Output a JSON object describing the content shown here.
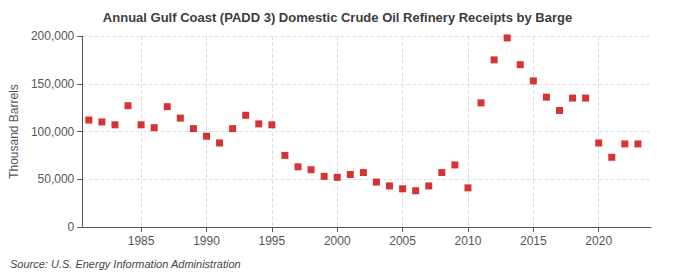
{
  "chart_data": {
    "type": "scatter",
    "title": "Annual Gulf Coast (PADD 3) Domestic Crude Oil Refinery Receipts by Barge",
    "ylabel": "Thousand Barrels",
    "annotation": "Source: U.S. Energy Information Administration",
    "x": [
      1981,
      1982,
      1983,
      1984,
      1985,
      1986,
      1987,
      1988,
      1989,
      1990,
      1991,
      1992,
      1993,
      1994,
      1995,
      1996,
      1997,
      1998,
      1999,
      2000,
      2001,
      2002,
      2003,
      2004,
      2005,
      2006,
      2007,
      2008,
      2009,
      2010,
      2011,
      2012,
      2013,
      2014,
      2015,
      2016,
      2017,
      2018,
      2019,
      2020,
      2021,
      2022,
      2023
    ],
    "values": [
      112000,
      110000,
      107000,
      127000,
      107000,
      104000,
      126000,
      114000,
      103000,
      95000,
      88000,
      103000,
      117000,
      108000,
      107000,
      75000,
      63000,
      60000,
      53000,
      52000,
      55000,
      57000,
      47000,
      43000,
      40000,
      38000,
      43000,
      57000,
      65000,
      41000,
      130000,
      175000,
      198000,
      170000,
      153000,
      136000,
      122000,
      135000,
      135000,
      88000,
      73000,
      87000,
      87000
    ],
    "color": "#cc0000",
    "marker": "square",
    "xlim": [
      1980.5,
      2024
    ],
    "xticks": [
      1985,
      1990,
      1995,
      2000,
      2005,
      2010,
      2015,
      2020
    ],
    "ylim": [
      0,
      200000
    ],
    "yticks": [
      0,
      {
        "value": 50000,
        "label": "50,000"
      },
      {
        "value": 100000,
        "label": "100,000"
      },
      {
        "value": 150000,
        "label": "150,000"
      },
      {
        "value": 200000,
        "label": "200,000"
      }
    ],
    "grid": true
  }
}
